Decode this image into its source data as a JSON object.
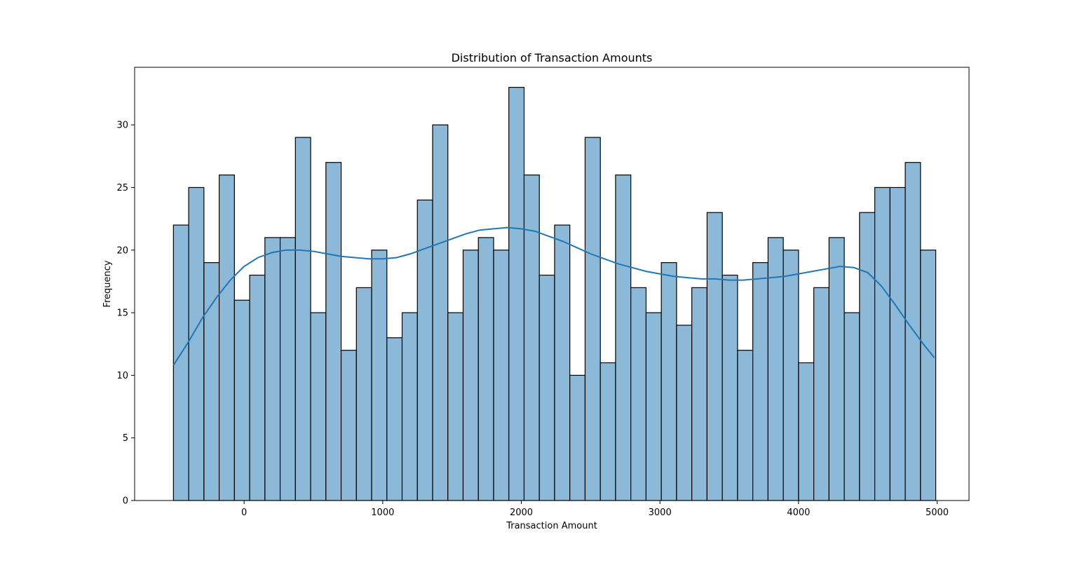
{
  "chart_data": {
    "type": "bar",
    "subtype": "histogram_with_kde",
    "title": "Distribution of Transaction Amounts",
    "xlabel": "Transaction Amount",
    "ylabel": "Frequency",
    "xlim": [
      -790,
      5230
    ],
    "ylim": [
      0,
      34.6
    ],
    "xticks": [
      0,
      1000,
      2000,
      3000,
      4000,
      5000
    ],
    "yticks": [
      0,
      5,
      10,
      15,
      20,
      25,
      30
    ],
    "grid": false,
    "legend": "none",
    "bin_start": -510,
    "bin_width": 110,
    "values": [
      22,
      25,
      19,
      26,
      16,
      18,
      21,
      21,
      29,
      15,
      27,
      12,
      17,
      20,
      13,
      15,
      24,
      30,
      15,
      20,
      21,
      20,
      33,
      26,
      18,
      22,
      10,
      29,
      11,
      26,
      17,
      15,
      19,
      14,
      17,
      23,
      18,
      12,
      19,
      21,
      20,
      11,
      17,
      21,
      15,
      23,
      25,
      25,
      27,
      20
    ],
    "kde": {
      "x": [
        -510,
        -400,
        -300,
        -200,
        -100,
        0,
        100,
        200,
        300,
        400,
        500,
        600,
        700,
        800,
        900,
        1000,
        1100,
        1200,
        1300,
        1400,
        1500,
        1600,
        1700,
        1800,
        1900,
        2000,
        2100,
        2200,
        2300,
        2400,
        2500,
        2600,
        2700,
        2800,
        2900,
        3000,
        3100,
        3200,
        3300,
        3400,
        3500,
        3600,
        3700,
        3800,
        3900,
        4000,
        4100,
        4200,
        4300,
        4400,
        4500,
        4600,
        4700,
        4800,
        4900,
        4980
      ],
      "y": [
        10.8,
        12.7,
        14.6,
        16.2,
        17.6,
        18.7,
        19.4,
        19.8,
        20.0,
        20.0,
        19.9,
        19.7,
        19.5,
        19.4,
        19.3,
        19.3,
        19.4,
        19.7,
        20.1,
        20.5,
        20.9,
        21.3,
        21.6,
        21.7,
        21.8,
        21.7,
        21.5,
        21.1,
        20.7,
        20.2,
        19.7,
        19.3,
        18.9,
        18.6,
        18.3,
        18.1,
        17.9,
        17.8,
        17.7,
        17.7,
        17.6,
        17.6,
        17.7,
        17.8,
        17.9,
        18.1,
        18.3,
        18.5,
        18.7,
        18.6,
        18.2,
        17.1,
        15.6,
        14.0,
        12.5,
        11.4
      ]
    },
    "colors": {
      "bar_fill": "#8db9d9",
      "bar_edge": "#000000",
      "kde_line": "#1f77b4"
    }
  }
}
